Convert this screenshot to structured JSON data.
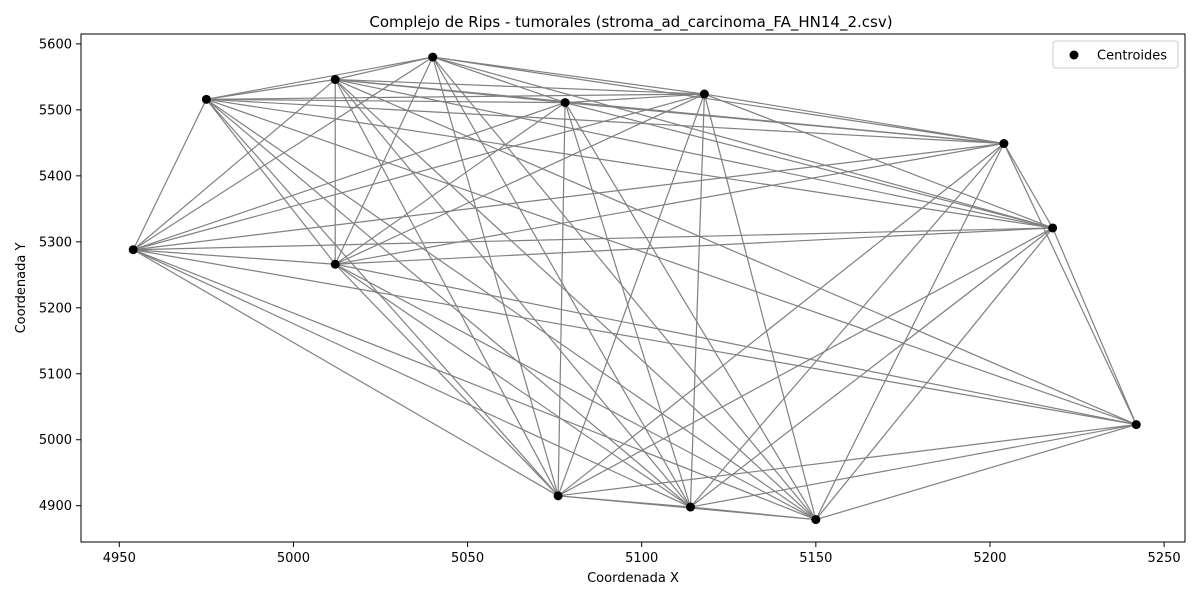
{
  "chart_data": {
    "type": "scatter",
    "title": "Complejo de Rips - tumorales (stroma_ad_carcinoma_FA_HN14_2.csv)",
    "xlabel": "Coordenada X",
    "ylabel": "Coordenada Y",
    "xlim": [
      4939,
      5256
    ],
    "ylim": [
      4845,
      5615
    ],
    "xticks": [
      4950,
      5000,
      5050,
      5100,
      5150,
      5200,
      5250
    ],
    "yticks": [
      4900,
      5000,
      5100,
      5200,
      5300,
      5400,
      5500,
      5600
    ],
    "grid": false,
    "legend": {
      "position": "top-right",
      "entries": [
        "Centroides"
      ]
    },
    "colors": {
      "points": "#000000",
      "edges": "#808080"
    },
    "series": [
      {
        "name": "Centroides",
        "points": [
          {
            "x": 4954,
            "y": 5288
          },
          {
            "x": 4975,
            "y": 5516
          },
          {
            "x": 5012,
            "y": 5546
          },
          {
            "x": 5012,
            "y": 5266
          },
          {
            "x": 5040,
            "y": 5580
          },
          {
            "x": 5076,
            "y": 4915
          },
          {
            "x": 5078,
            "y": 5511
          },
          {
            "x": 5114,
            "y": 4898
          },
          {
            "x": 5118,
            "y": 5524
          },
          {
            "x": 5150,
            "y": 4879
          },
          {
            "x": 5204,
            "y": 5449
          },
          {
            "x": 5218,
            "y": 5321
          },
          {
            "x": 5242,
            "y": 5023
          }
        ]
      }
    ],
    "edges": [
      [
        0,
        1
      ],
      [
        0,
        2
      ],
      [
        0,
        3
      ],
      [
        0,
        4
      ],
      [
        0,
        5
      ],
      [
        0,
        6
      ],
      [
        0,
        7
      ],
      [
        0,
        8
      ],
      [
        0,
        9
      ],
      [
        0,
        10
      ],
      [
        0,
        11
      ],
      [
        0,
        12
      ],
      [
        1,
        2
      ],
      [
        1,
        3
      ],
      [
        1,
        4
      ],
      [
        1,
        5
      ],
      [
        1,
        6
      ],
      [
        1,
        7
      ],
      [
        1,
        8
      ],
      [
        1,
        9
      ],
      [
        1,
        10
      ],
      [
        1,
        11
      ],
      [
        1,
        12
      ],
      [
        2,
        3
      ],
      [
        2,
        4
      ],
      [
        2,
        5
      ],
      [
        2,
        6
      ],
      [
        2,
        7
      ],
      [
        2,
        8
      ],
      [
        2,
        9
      ],
      [
        2,
        10
      ],
      [
        2,
        11
      ],
      [
        2,
        12
      ],
      [
        3,
        4
      ],
      [
        3,
        5
      ],
      [
        3,
        6
      ],
      [
        3,
        7
      ],
      [
        3,
        8
      ],
      [
        3,
        9
      ],
      [
        3,
        10
      ],
      [
        3,
        11
      ],
      [
        3,
        12
      ],
      [
        4,
        5
      ],
      [
        4,
        6
      ],
      [
        4,
        7
      ],
      [
        4,
        8
      ],
      [
        4,
        9
      ],
      [
        4,
        10
      ],
      [
        4,
        11
      ],
      [
        5,
        6
      ],
      [
        5,
        7
      ],
      [
        5,
        8
      ],
      [
        5,
        9
      ],
      [
        5,
        10
      ],
      [
        5,
        11
      ],
      [
        5,
        12
      ],
      [
        6,
        7
      ],
      [
        6,
        8
      ],
      [
        6,
        9
      ],
      [
        6,
        10
      ],
      [
        6,
        11
      ],
      [
        7,
        8
      ],
      [
        7,
        9
      ],
      [
        7,
        10
      ],
      [
        7,
        11
      ],
      [
        7,
        12
      ],
      [
        8,
        9
      ],
      [
        8,
        10
      ],
      [
        8,
        11
      ],
      [
        9,
        10
      ],
      [
        9,
        11
      ],
      [
        9,
        12
      ],
      [
        10,
        11
      ],
      [
        10,
        12
      ],
      [
        11,
        12
      ]
    ]
  }
}
